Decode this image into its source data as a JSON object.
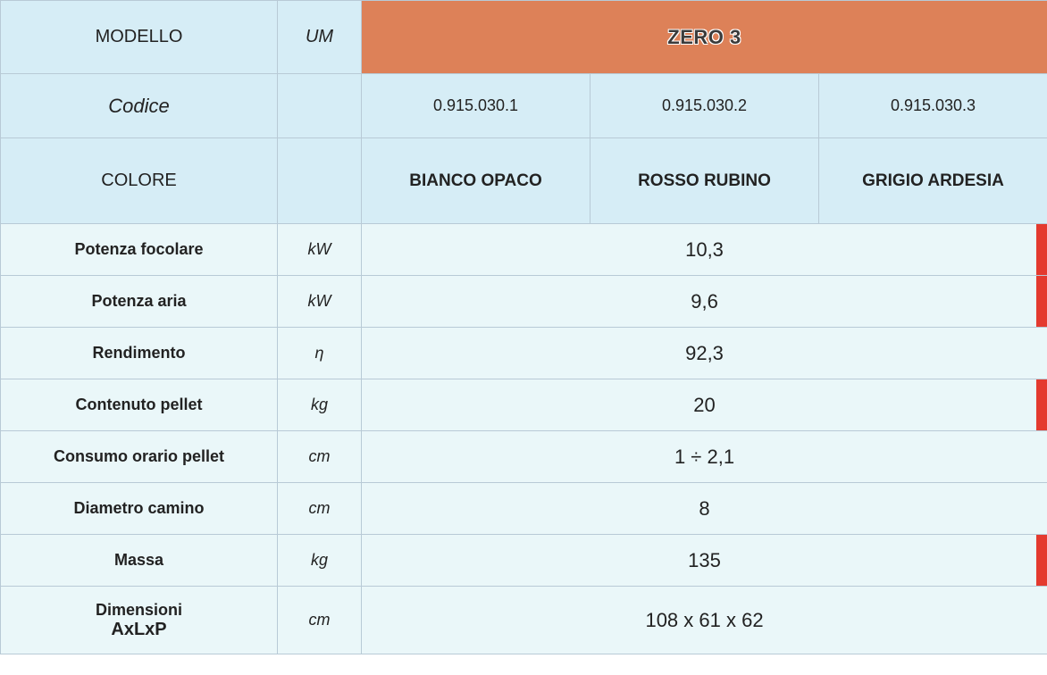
{
  "header": {
    "modello": "MODELLO",
    "um": "UM",
    "product": "ZERO 3"
  },
  "codice": {
    "label": "Codice",
    "values": [
      "0.915.030.1",
      "0.915.030.2",
      "0.915.030.3"
    ]
  },
  "colore": {
    "label": "COLORE",
    "values": [
      "BIANCO OPACO",
      "ROSSO RUBINO",
      "GRIGIO ARDESIA"
    ]
  },
  "specs": [
    {
      "label": "Potenza focolare",
      "unit": "kW",
      "value": "10,3",
      "redEdge": true
    },
    {
      "label": "Potenza aria",
      "unit": "kW",
      "value": "9,6",
      "redEdge": true
    },
    {
      "label": "Rendimento",
      "unit": "η",
      "value": "92,3",
      "redEdge": false
    },
    {
      "label": "Contenuto pellet",
      "unit": "kg",
      "value": "20",
      "redEdge": true
    },
    {
      "label": "Consumo orario pellet",
      "unit": "cm",
      "value": "1 ÷ 2,1",
      "redEdge": false
    },
    {
      "label": "Diametro camino",
      "unit": "cm",
      "value": "8",
      "redEdge": false
    },
    {
      "label": "Massa",
      "unit": "kg",
      "value": "135",
      "redEdge": true
    },
    {
      "label": "Dimensioni",
      "sublabel": "AxLxP",
      "unit": "cm",
      "value": "108 x 61 x 62",
      "redEdge": false
    }
  ],
  "colors": {
    "header_bg": "#d6edf6",
    "product_bg": "#dd8158",
    "data_bg": "#eaf7f9",
    "border": "#b8cad6",
    "red_accent": "#e43a2f"
  }
}
